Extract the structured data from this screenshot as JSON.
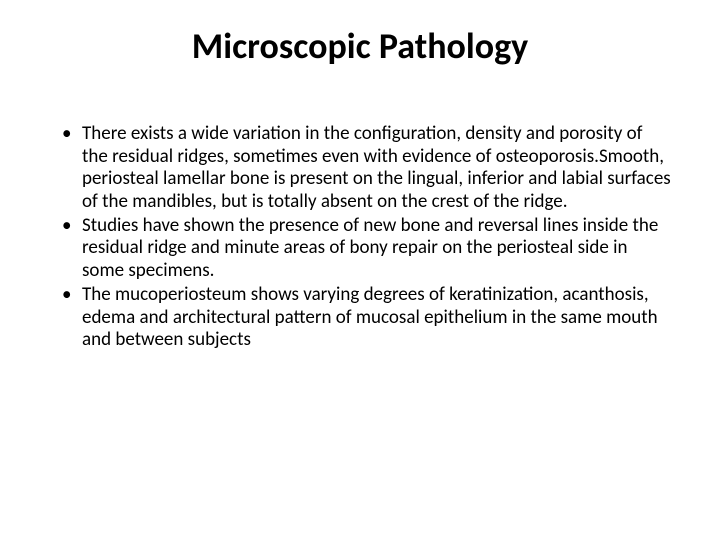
{
  "slide": {
    "title": "Microscopic Pathology",
    "bullets": [
      "There exists a wide variation in the configuration, density and porosity of the residual ridges, sometimes even with evidence of osteoporosis.Smooth, periosteal lamellar bone is present on the lingual, inferior and labial surfaces of the mandibles, but is totally absent on the crest of the ridge.",
      "Studies have shown the presence of new bone and reversal lines inside the residual ridge and minute areas of bony repair on the periosteal side in some specimens.",
      "The mucoperiosteum shows varying degrees of keratinization, acanthosis, edema and architectural pattern of mucosal epithelium in the same mouth and between subjects"
    ],
    "background_color": "#ffffff",
    "text_color": "#000000",
    "title_fontsize": 36,
    "body_fontsize": 19,
    "font_family": "Calibri"
  }
}
